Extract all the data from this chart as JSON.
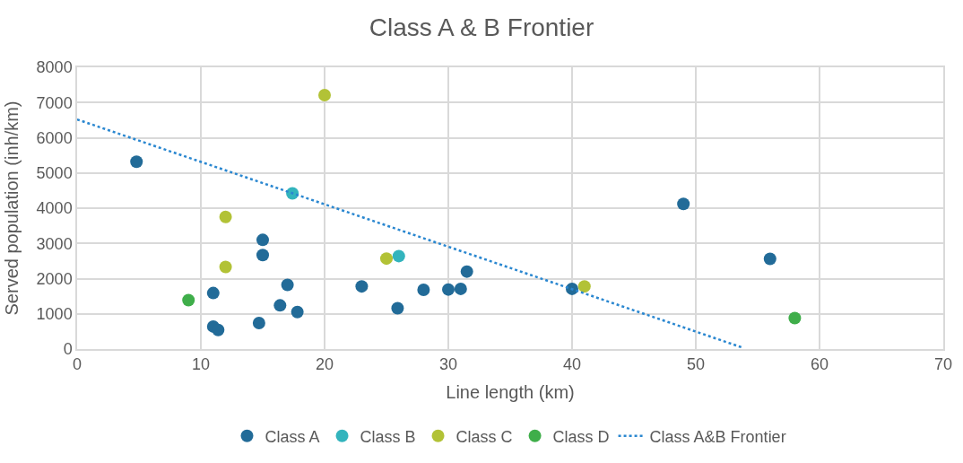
{
  "chart_data": {
    "type": "scatter",
    "title": "Class A & B Frontier",
    "xlabel": "Line length (km)",
    "ylabel": "Served population (inh/km)",
    "xlim": [
      0,
      70
    ],
    "xticks": [
      0,
      10,
      20,
      30,
      40,
      50,
      60,
      70
    ],
    "ylim": [
      0,
      8000
    ],
    "yticks": [
      0,
      1000,
      2000,
      3000,
      4000,
      5000,
      6000,
      7000,
      8000
    ],
    "grid": true,
    "legend": "bottom",
    "series": [
      {
        "name": "Class A",
        "color": "#226b98",
        "marker": "circle",
        "x": [
          4.8,
          11,
          11,
          11.4,
          14.7,
          15,
          15,
          16.4,
          17,
          17.8,
          23,
          25.9,
          28,
          30,
          31,
          31.5,
          40,
          49,
          56
        ],
        "values": [
          5320,
          1590,
          640,
          540,
          740,
          3100,
          2670,
          1240,
          1820,
          1050,
          1780,
          1160,
          1680,
          1690,
          1710,
          2200,
          1710,
          4120,
          2560
        ]
      },
      {
        "name": "Class B",
        "color": "#33b4bd",
        "marker": "circle",
        "x": [
          17.4,
          26
        ],
        "values": [
          4420,
          2640
        ]
      },
      {
        "name": "Class C",
        "color": "#b2c236",
        "marker": "circle",
        "x": [
          12,
          12,
          20,
          25,
          41
        ],
        "values": [
          3750,
          2330,
          7210,
          2570,
          1780
        ]
      },
      {
        "name": "Class D",
        "color": "#3fae4a",
        "marker": "circle",
        "x": [
          9,
          58
        ],
        "values": [
          1390,
          880
        ]
      },
      {
        "name": "Class A&B Frontier",
        "type": "line",
        "line_style": "dotted",
        "color": "#2a87d0",
        "x": [
          0,
          53.7
        ],
        "values": [
          6520,
          50
        ]
      }
    ]
  }
}
